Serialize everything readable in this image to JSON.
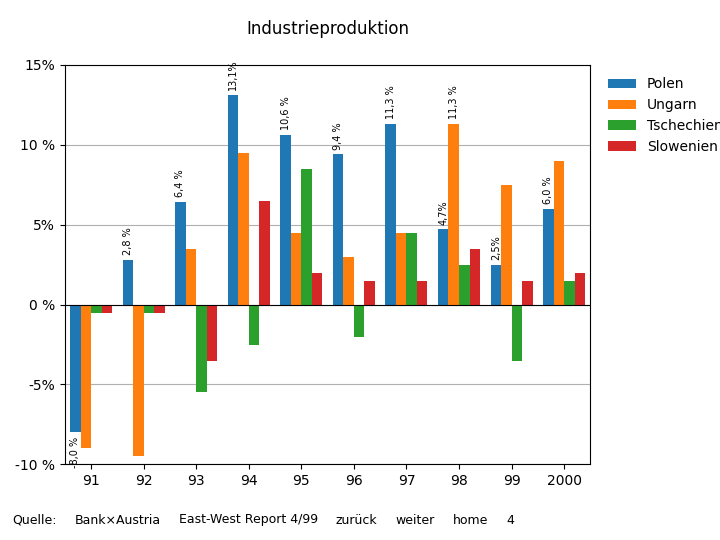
{
  "chart_data": {
    "type": "bar",
    "title": "Industrieproduktion",
    "categories": [
      "91",
      "92",
      "93",
      "94",
      "95",
      "96",
      "97",
      "98",
      "99",
      "2000"
    ],
    "series": [
      {
        "name": "Polen",
        "values": [
          -8.0,
          2.8,
          6.4,
          13.1,
          10.6,
          9.4,
          11.3,
          4.7,
          2.5,
          6.0
        ],
        "value_labels": [
          "-8,0 %",
          "2,8 %",
          "6,4 %",
          "13,1%",
          "10,6 %",
          "9,4 %",
          "11,3 %",
          "4,7%",
          "2,5%",
          "6,0 %"
        ]
      },
      {
        "name": "Ungarn",
        "values": [
          -9.0,
          -9.5,
          3.5,
          9.5,
          4.5,
          3.0,
          4.5,
          11.3,
          7.5,
          9.0
        ],
        "value_labels": [
          null,
          null,
          null,
          null,
          null,
          null,
          null,
          "11,3 %",
          null,
          null
        ]
      },
      {
        "name": "Tschechien",
        "values": [
          -0.5,
          -0.5,
          -5.5,
          -2.5,
          8.5,
          -2.0,
          4.5,
          2.5,
          -3.5,
          1.5
        ]
      },
      {
        "name": "Slowenien",
        "values": [
          -0.5,
          -0.5,
          -3.5,
          6.5,
          2.0,
          1.5,
          1.5,
          3.5,
          1.5,
          2.0
        ]
      }
    ],
    "ylim": [
      -10,
      15
    ],
    "yticks": [
      {
        "value": -10,
        "label": "-10 %"
      },
      {
        "value": -5,
        "label": "-5%"
      },
      {
        "value": 0,
        "label": "0 %"
      },
      {
        "value": 5,
        "label": "5%"
      },
      {
        "value": 10,
        "label": "10 %"
      },
      {
        "value": 15,
        "label": "15%"
      }
    ],
    "grid": true,
    "legend": "upper left",
    "annotations": [
      "Quelle:",
      "Bank×Austria",
      "East-West Report 4/99",
      "zurück",
      "weiter",
      "home",
      "4"
    ]
  }
}
